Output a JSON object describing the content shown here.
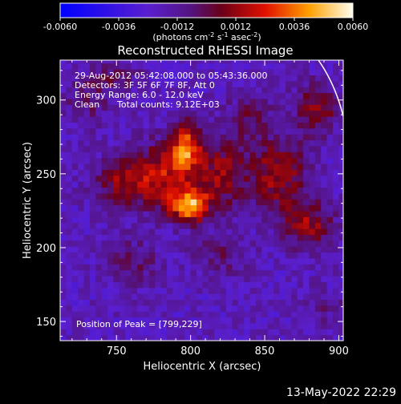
{
  "chart_data": {
    "type": "heatmap",
    "title": "Reconstructed RHESSI Image",
    "xlabel": "Heliocentric X (arcsec)",
    "ylabel": "Heliocentric Y (arcsec)",
    "xlim": [
      712,
      903
    ],
    "ylim": [
      137,
      327
    ],
    "xticks": [
      750,
      800,
      850,
      900
    ],
    "yticks": [
      150,
      200,
      250,
      300
    ],
    "colorbar": {
      "min": -0.006,
      "max": 0.006,
      "ticks": [
        "-0.0060",
        "-0.0036",
        "-0.0012",
        "0.0012",
        "0.0036",
        "0.0060"
      ],
      "unit_main": "(photons cm",
      "unit_sup1": "-2",
      "unit_mid1": " s",
      "unit_sup2": "-1",
      "unit_mid2": " asec",
      "unit_sup3": "-2",
      "unit_end": ")"
    },
    "annotations": {
      "time": "29-Aug-2012 05:42:08.000 to 05:43:36.000",
      "detectors": "Detectors: 3F 5F 6F 7F 8F, Att 0",
      "energy": "Energy Range: 6.0 - 12.0 keV",
      "clean": "Clean",
      "counts": "Total counts: 9.12E+03",
      "peak": "Position of Peak = [799,229]"
    },
    "peak_position": [
      799,
      229
    ],
    "sources": [
      {
        "x": 799,
        "y": 229,
        "amp": 0.006,
        "sx": 9,
        "sy": 8
      },
      {
        "x": 797,
        "y": 268,
        "amp": 0.005,
        "sx": 7,
        "sy": 12
      },
      {
        "x": 780,
        "y": 250,
        "amp": 0.0034,
        "sx": 12,
        "sy": 16
      },
      {
        "x": 820,
        "y": 250,
        "amp": 0.003,
        "sx": 14,
        "sy": 18
      },
      {
        "x": 755,
        "y": 245,
        "amp": 0.003,
        "sx": 14,
        "sy": 12
      },
      {
        "x": 860,
        "y": 250,
        "amp": 0.0032,
        "sx": 14,
        "sy": 18
      },
      {
        "x": 880,
        "y": 215,
        "amp": 0.003,
        "sx": 12,
        "sy": 12
      },
      {
        "x": 885,
        "y": 295,
        "amp": 0.003,
        "sx": 10,
        "sy": 12
      },
      {
        "x": 760,
        "y": 190,
        "amp": 0.0016,
        "sx": 14,
        "sy": 12
      },
      {
        "x": 730,
        "y": 300,
        "amp": 0.0014,
        "sx": 12,
        "sy": 12
      },
      {
        "x": 840,
        "y": 290,
        "amp": 0.0018,
        "sx": 12,
        "sy": 10
      },
      {
        "x": 750,
        "y": 315,
        "amp": 0.0016,
        "sx": 12,
        "sy": 8
      },
      {
        "x": 890,
        "y": 160,
        "amp": 0.001,
        "sx": 12,
        "sy": 10
      },
      {
        "x": 820,
        "y": 195,
        "amp": 0.0014,
        "sx": 14,
        "sy": 10
      }
    ],
    "background": -0.002
  },
  "footer": {
    "date": "13-May-2022 22:29"
  }
}
